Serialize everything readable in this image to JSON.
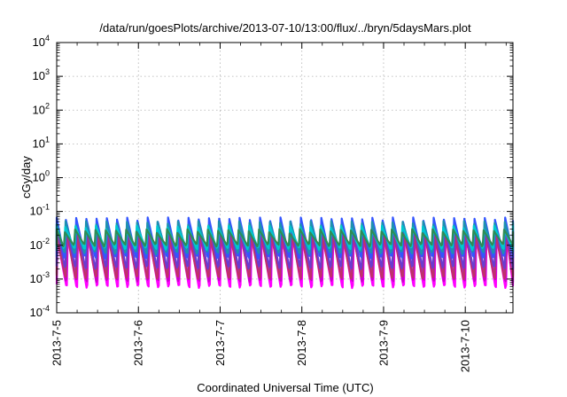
{
  "chart_data": {
    "type": "line",
    "title": "/data/run/goesPlots/archive/2013-07-10/13:00/flux/../bryn/5daysMars.plot",
    "xlabel": "Coordinated Universal Time (UTC)",
    "ylabel": "cGy/day",
    "yscale": "log",
    "ylim": [
      0.0001,
      10000
    ],
    "y_ticks": [
      {
        "exp": "-4",
        "value": 0.0001
      },
      {
        "exp": "-3",
        "value": 0.001
      },
      {
        "exp": "-2",
        "value": 0.01
      },
      {
        "exp": "-1",
        "value": 0.1
      },
      {
        "exp": "0",
        "value": 1
      },
      {
        "exp": "1",
        "value": 10
      },
      {
        "exp": "2",
        "value": 100
      },
      {
        "exp": "3",
        "value": 1000
      },
      {
        "exp": "4",
        "value": 10000
      }
    ],
    "y_tick_base": "10",
    "xlim": [
      "2013-07-05",
      "2013-07-10 14:00"
    ],
    "x_ticks": [
      "2013-7-5",
      "2013-7-6",
      "2013-7-7",
      "2013-7-8",
      "2013-7-9",
      "2013-7-10"
    ],
    "grid": true,
    "legend": "none",
    "pattern": {
      "cycles_per_day": 8,
      "peak_range": [
        0.035,
        0.06
      ],
      "trough_range": [
        0.0005,
        0.0015
      ]
    },
    "series": [
      {
        "color": "#ff00ff",
        "peak": 0.018,
        "trough": 0.0006
      },
      {
        "color": "#cc00cc",
        "peak": 0.024,
        "trough": 0.0009
      },
      {
        "color": "#9a2fd6",
        "peak": 0.03,
        "trough": 0.0014
      },
      {
        "color": "#c0306a",
        "peak": 0.022,
        "trough": 0.0011
      },
      {
        "color": "#6a3cd0",
        "peak": 0.04,
        "trough": 0.0022
      },
      {
        "color": "#3355ff",
        "peak": 0.058,
        "trough": 0.0045
      },
      {
        "color": "#1e90b0",
        "peak": 0.045,
        "trough": 0.006
      },
      {
        "color": "#00c8d0",
        "peak": 0.033,
        "trough": 0.008
      },
      {
        "color": "#2e8b57",
        "peak": 0.026,
        "trough": 0.01
      }
    ]
  }
}
